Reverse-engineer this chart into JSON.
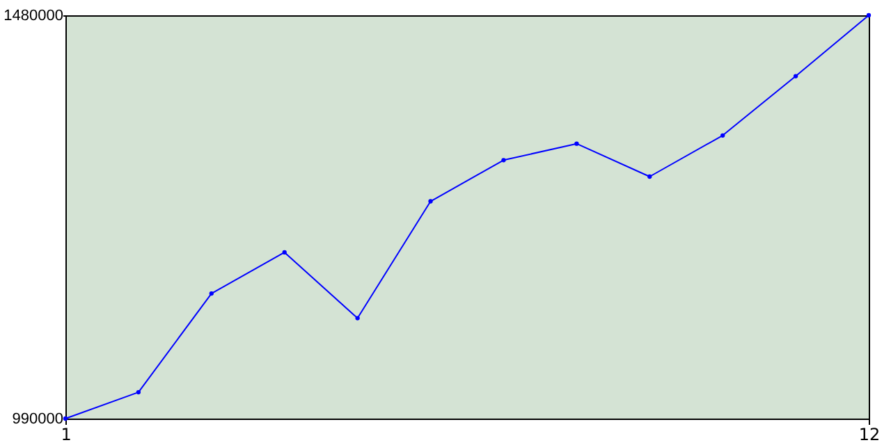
{
  "chart_data": {
    "type": "line",
    "x": [
      1,
      2,
      3,
      4,
      5,
      6,
      7,
      8,
      9,
      10,
      11,
      12
    ],
    "series": [
      {
        "color": "#0000ff",
        "values": [
          990000,
          1022000,
          1142000,
          1192000,
          1112000,
          1254000,
          1304000,
          1324000,
          1284000,
          1334000,
          1406000,
          1480000
        ]
      }
    ],
    "xlim": [
      1,
      12
    ],
    "xticks": [
      1,
      12
    ],
    "ylim": [
      990000,
      1480000
    ],
    "yticks": [
      990000,
      1480000
    ],
    "marker": "circle",
    "line_style": "solid"
  }
}
